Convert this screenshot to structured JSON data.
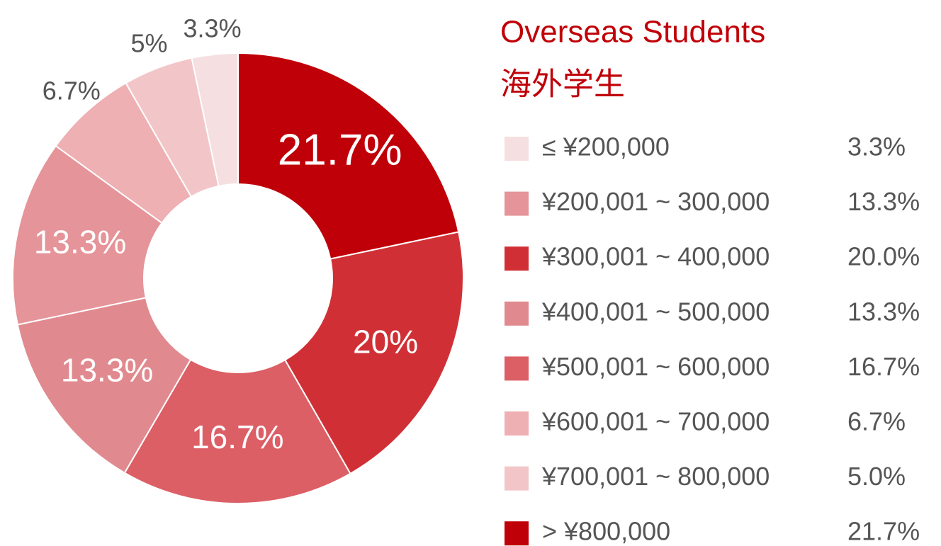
{
  "chart_data": {
    "type": "donut",
    "title": "Overseas Students",
    "subtitle": "海外学生",
    "categories": [
      "≤ ¥200,000",
      "¥200,001 ~ 300,000",
      "¥300,001 ~ 400,000",
      "¥400,001 ~ 500,000",
      "¥500,001 ~ 600,000",
      "¥600,001 ~ 700,000",
      "¥700,001 ~ 800,000",
      "> ¥800,000"
    ],
    "values": [
      3.3,
      13.3,
      20.0,
      13.3,
      16.7,
      6.7,
      5.0,
      21.7
    ],
    "value_labels": [
      "3.3%",
      "13.3%",
      "20.0%",
      "13.3%",
      "16.7%",
      "6.7%",
      "5.0%",
      "21.7%"
    ],
    "slice_labels": [
      "3.3%",
      "13.3%",
      "20%",
      "13.3%",
      "16.7%",
      "6.7%",
      "5%",
      "21.7%"
    ],
    "colors": [
      "#f5dfe0",
      "#e59499",
      "#d03035",
      "#e08a8f",
      "#dc5f66",
      "#eeb0b3",
      "#f2c6c8",
      "#c00008"
    ],
    "slice_order": [
      7,
      2,
      4,
      3,
      1,
      5,
      6,
      0
    ]
  }
}
